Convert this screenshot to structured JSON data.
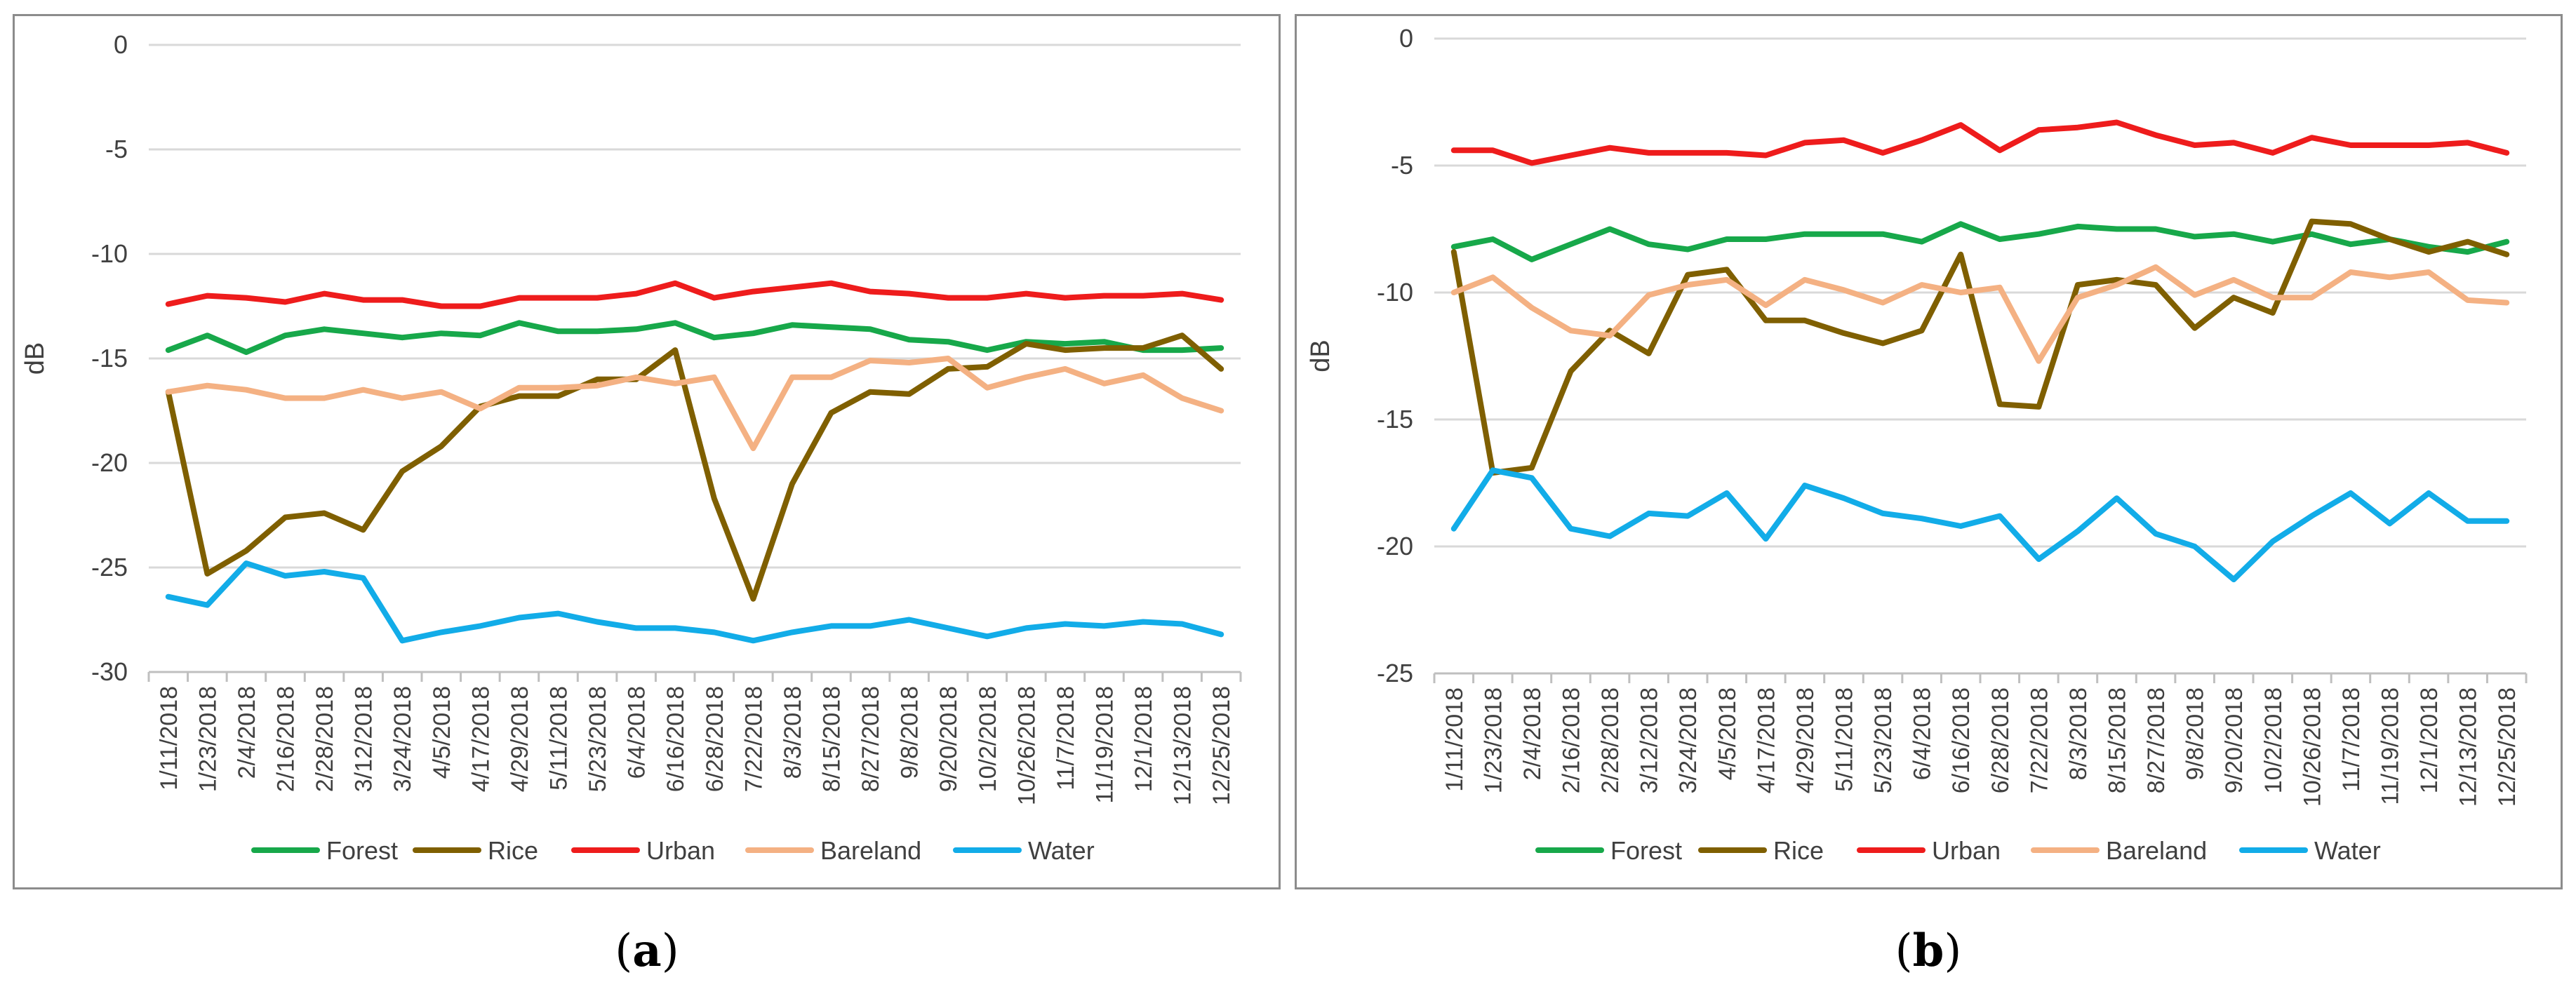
{
  "chart_data": [
    {
      "type": "line",
      "panel_label": "a",
      "title": "",
      "xlabel": "",
      "ylabel": "dB",
      "ylim": [
        -30,
        0
      ],
      "yticks": [
        0,
        -5,
        -10,
        -15,
        -20,
        -25,
        -30
      ],
      "grid": true,
      "legend": "bottom",
      "categories": [
        "1/11/2018",
        "1/23/2018",
        "2/4/2018",
        "2/16/2018",
        "2/28/2018",
        "3/12/2018",
        "3/24/2018",
        "4/5/2018",
        "4/17/2018",
        "4/29/2018",
        "5/11/2018",
        "5/23/2018",
        "6/4/2018",
        "6/16/2018",
        "6/28/2018",
        "7/22/2018",
        "8/3/2018",
        "8/15/2018",
        "8/27/2018",
        "9/8/2018",
        "9/20/2018",
        "10/2/2018",
        "10/26/2018",
        "11/7/2018",
        "11/19/2018",
        "12/1/2018",
        "12/13/2018",
        "12/25/2018"
      ],
      "series": [
        {
          "name": "Forest",
          "color": "#17a84a",
          "values": [
            -14.6,
            -13.9,
            -14.7,
            -13.9,
            -13.6,
            -13.8,
            -14.0,
            -13.8,
            -13.9,
            -13.3,
            -13.7,
            -13.7,
            -13.6,
            -13.3,
            -14.0,
            -13.8,
            -13.4,
            -13.5,
            -13.6,
            -14.1,
            -14.2,
            -14.6,
            -14.2,
            -14.3,
            -14.2,
            -14.6,
            -14.6,
            -14.5
          ]
        },
        {
          "name": "Rice",
          "color": "#7f5f00",
          "values": [
            -16.6,
            -25.3,
            -24.2,
            -22.6,
            -22.4,
            -23.2,
            -20.4,
            -19.2,
            -17.3,
            -16.8,
            -16.8,
            -16.0,
            -16.0,
            -14.6,
            -21.7,
            -26.5,
            -21.0,
            -17.6,
            -16.6,
            -16.7,
            -15.5,
            -15.4,
            -14.3,
            -14.6,
            -14.5,
            -14.5,
            -13.9,
            -15.5
          ]
        },
        {
          "name": "Urban",
          "color": "#ee1c1c",
          "values": [
            -12.4,
            -12.0,
            -12.1,
            -12.3,
            -11.9,
            -12.2,
            -12.2,
            -12.5,
            -12.5,
            -12.1,
            -12.1,
            -12.1,
            -11.9,
            -11.4,
            -12.1,
            -11.8,
            -11.6,
            -11.4,
            -11.8,
            -11.9,
            -12.1,
            -12.1,
            -11.9,
            -12.1,
            -12.0,
            -12.0,
            -11.9,
            -12.2
          ]
        },
        {
          "name": "Bareland",
          "color": "#f4b183",
          "values": [
            -16.6,
            -16.3,
            -16.5,
            -16.9,
            -16.9,
            -16.5,
            -16.9,
            -16.6,
            -17.4,
            -16.4,
            -16.4,
            -16.3,
            -15.9,
            -16.2,
            -15.9,
            -19.3,
            -15.9,
            -15.9,
            -15.1,
            -15.2,
            -15.0,
            -16.4,
            -15.9,
            -15.5,
            -16.2,
            -15.8,
            -16.9,
            -17.5
          ]
        },
        {
          "name": "Water",
          "color": "#12ace8",
          "values": [
            -26.4,
            -26.8,
            -24.8,
            -25.4,
            -25.2,
            -25.5,
            -28.5,
            -28.1,
            -27.8,
            -27.4,
            -27.2,
            -27.6,
            -27.9,
            -27.9,
            -28.1,
            -28.5,
            -28.1,
            -27.8,
            -27.8,
            -27.5,
            -27.9,
            -28.3,
            -27.9,
            -27.7,
            -27.8,
            -27.6,
            -27.7,
            -28.2
          ]
        }
      ]
    },
    {
      "type": "line",
      "panel_label": "b",
      "title": "",
      "xlabel": "",
      "ylabel": "dB",
      "ylim": [
        -25,
        0
      ],
      "yticks": [
        0,
        -5,
        -10,
        -15,
        -20,
        -25
      ],
      "grid": true,
      "legend": "bottom",
      "categories": [
        "1/11/2018",
        "1/23/2018",
        "2/4/2018",
        "2/16/2018",
        "2/28/2018",
        "3/12/2018",
        "3/24/2018",
        "4/5/2018",
        "4/17/2018",
        "4/29/2018",
        "5/11/2018",
        "5/23/2018",
        "6/4/2018",
        "6/16/2018",
        "6/28/2018",
        "7/22/2018",
        "8/3/2018",
        "8/15/2018",
        "8/27/2018",
        "9/8/2018",
        "9/20/2018",
        "10/2/2018",
        "10/26/2018",
        "11/7/2018",
        "11/19/2018",
        "12/1/2018",
        "12/13/2018",
        "12/25/2018"
      ],
      "series": [
        {
          "name": "Forest",
          "color": "#17a84a",
          "values": [
            -8.2,
            -7.9,
            -8.7,
            -8.1,
            -7.5,
            -8.1,
            -8.3,
            -7.9,
            -7.9,
            -7.7,
            -7.7,
            -7.7,
            -8.0,
            -7.3,
            -7.9,
            -7.7,
            -7.4,
            -7.5,
            -7.5,
            -7.8,
            -7.7,
            -8.0,
            -7.7,
            -8.1,
            -7.9,
            -8.2,
            -8.4,
            -8.0
          ]
        },
        {
          "name": "Rice",
          "color": "#7f5f00",
          "values": [
            -8.4,
            -17.1,
            -16.9,
            -13.1,
            -11.5,
            -12.4,
            -9.3,
            -9.1,
            -11.1,
            -11.1,
            -11.6,
            -12.0,
            -11.5,
            -8.5,
            -14.4,
            -14.5,
            -9.7,
            -9.5,
            -9.7,
            -11.4,
            -10.2,
            -10.8,
            -7.2,
            -7.3,
            -7.9,
            -8.4,
            -8.0,
            -8.5
          ]
        },
        {
          "name": "Urban",
          "color": "#ee1c1c",
          "values": [
            -4.4,
            -4.4,
            -4.9,
            -4.6,
            -4.3,
            -4.5,
            -4.5,
            -4.5,
            -4.6,
            -4.1,
            -4.0,
            -4.5,
            -4.0,
            -3.4,
            -4.4,
            -3.6,
            -3.5,
            -3.3,
            -3.8,
            -4.2,
            -4.1,
            -4.5,
            -3.9,
            -4.2,
            -4.2,
            -4.2,
            -4.1,
            -4.5
          ]
        },
        {
          "name": "Bareland",
          "color": "#f4b183",
          "values": [
            -10.0,
            -9.4,
            -10.6,
            -11.5,
            -11.7,
            -10.1,
            -9.7,
            -9.5,
            -10.5,
            -9.5,
            -9.9,
            -10.4,
            -9.7,
            -10.0,
            -9.8,
            -12.7,
            -10.2,
            -9.7,
            -9.0,
            -10.1,
            -9.5,
            -10.2,
            -10.2,
            -9.2,
            -9.4,
            -9.2,
            -10.3,
            -10.4
          ]
        },
        {
          "name": "Water",
          "color": "#12ace8",
          "values": [
            -19.3,
            -17.0,
            -17.3,
            -19.3,
            -19.6,
            -18.7,
            -18.8,
            -17.9,
            -19.7,
            -17.6,
            -18.1,
            -18.7,
            -18.9,
            -19.2,
            -18.8,
            -20.5,
            -19.4,
            -18.1,
            -19.5,
            -20.0,
            -21.3,
            -19.8,
            -18.8,
            -17.9,
            -19.1,
            -17.9,
            -19.0,
            -19.0
          ]
        }
      ]
    }
  ]
}
